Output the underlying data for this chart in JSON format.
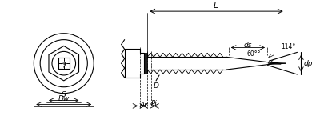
{
  "bg_color": "#ffffff",
  "line_color": "#000000",
  "dim_color": "#000000",
  "gray_color": "#555555",
  "light_gray": "#aaaaaa",
  "title": "",
  "labels": {
    "Ar": "Ar",
    "Pi": "Pi",
    "ds": "ds",
    "dp": "dp",
    "D": "D",
    "L": "L",
    "S": "S",
    "Dw": "Dw",
    "angle1": "114°",
    "angle2": "60°"
  }
}
